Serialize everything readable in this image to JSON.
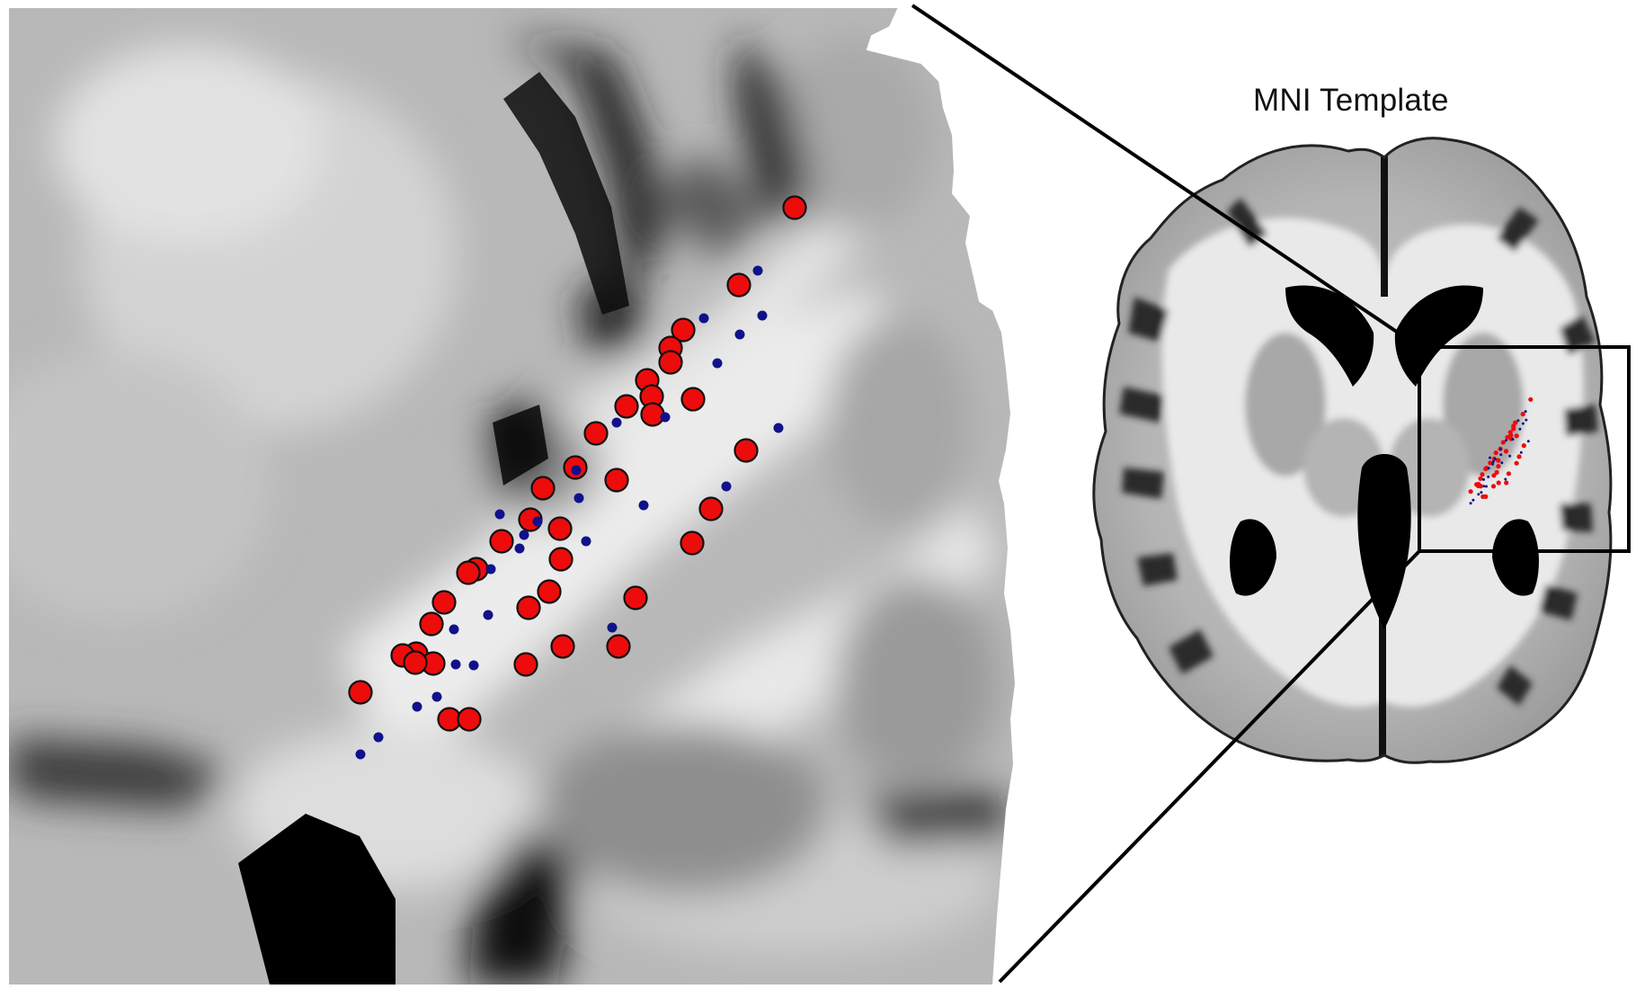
{
  "labels": {
    "template": "MNI Template"
  },
  "colors": {
    "contact_red": "#ee0b0b",
    "contact_blue": "#10128a",
    "outline": "#000000",
    "background": "#ffffff"
  }
}
